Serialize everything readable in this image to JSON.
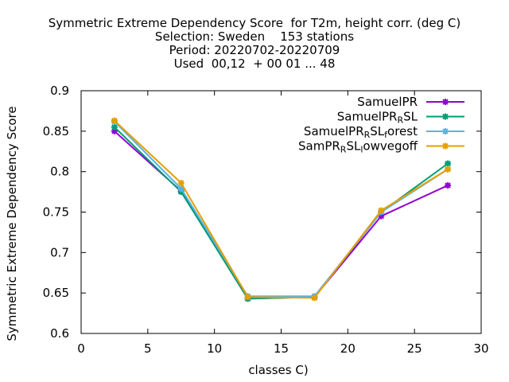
{
  "chart_data": {
    "type": "line",
    "title_lines": [
      "Symmetric Extreme Dependency Score  for T2m, height corr. (deg C)",
      "Selection: Sweden    153 stations",
      "Period: 20220702-20220709",
      "Used  00,12  + 00 01 ... 48"
    ],
    "xlabel": "classes C)",
    "ylabel": "Symmetric Extreme Dependency Score",
    "xlim": [
      0,
      30
    ],
    "ylim": [
      0.6,
      0.9
    ],
    "xticks": [
      0,
      5,
      10,
      15,
      20,
      25,
      30
    ],
    "yticks": [
      0.6,
      0.65,
      0.7,
      0.75,
      0.8,
      0.85,
      0.9
    ],
    "legend_position": "top-right",
    "x": [
      2.5,
      7.5,
      12.5,
      17.5,
      22.5,
      27.5
    ],
    "series": [
      {
        "name": "SamuelPR",
        "label_parts": [
          [
            "SamuelPR",
            "n"
          ]
        ],
        "color": "#9400d3",
        "values": [
          0.85,
          0.776,
          0.643,
          0.645,
          0.745,
          0.783
        ]
      },
      {
        "name": "SamuelPR_RSL",
        "label_parts": [
          [
            "SamuelPR",
            "n"
          ],
          [
            "R",
            "sub"
          ],
          [
            "SL",
            "n"
          ]
        ],
        "color": "#009e73",
        "values": [
          0.855,
          0.775,
          0.643,
          0.645,
          0.75,
          0.81
        ]
      },
      {
        "name": "SamuelPR_RSL_forest",
        "label_parts": [
          [
            "SamuelPR",
            "n"
          ],
          [
            "R",
            "sub"
          ],
          [
            "SL",
            "n"
          ],
          [
            "f",
            "sub"
          ],
          [
            "orest",
            "n"
          ]
        ],
        "color": "#56b4e9",
        "values": [
          0.862,
          0.779,
          0.646,
          0.646,
          0.75,
          0.803
        ]
      },
      {
        "name": "SamPR_RSL_lowvegoff",
        "label_parts": [
          [
            "SamPR",
            "n"
          ],
          [
            "R",
            "sub"
          ],
          [
            "SL",
            "n"
          ],
          [
            "l",
            "sub"
          ],
          [
            "owvegoff",
            "n"
          ]
        ],
        "color": "#e69f00",
        "values": [
          0.863,
          0.786,
          0.645,
          0.644,
          0.752,
          0.803
        ]
      }
    ]
  }
}
